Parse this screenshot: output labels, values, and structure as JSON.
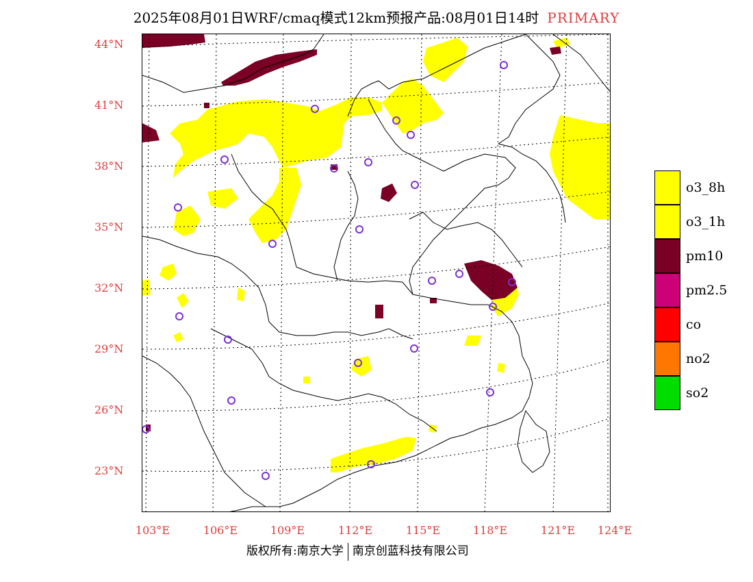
{
  "header": {
    "title": "2025年08月01日WRF/cmaq模式12km预报产品:08月01日14时",
    "tag": "PRIMARY"
  },
  "axes": {
    "latitudes": [
      "44°N",
      "41°N",
      "38°N",
      "35°N",
      "32°N",
      "29°N",
      "26°N",
      "23°N"
    ],
    "longitudes": [
      "103°E",
      "106°E",
      "109°E",
      "112°E",
      "115°E",
      "118°E",
      "121°E",
      "124°E"
    ]
  },
  "legend": {
    "items": [
      {
        "label": "o3_8h",
        "color": "#ffff00"
      },
      {
        "label": "o3_1h",
        "color": "#ffff00"
      },
      {
        "label": "pm10",
        "color": "#7a0026"
      },
      {
        "label": "pm2.5",
        "color": "#cc0077"
      },
      {
        "label": "co",
        "color": "#ff0000"
      },
      {
        "label": "no2",
        "color": "#ff7700"
      },
      {
        "label": "so2",
        "color": "#00dd00"
      }
    ]
  },
  "footer": {
    "copyright": "版权所有:南京大学",
    "company": "南京创蓝科技有限公司"
  },
  "colors": {
    "axis_label": "#e03b3b",
    "station_marker": "#7b2fd6"
  }
}
